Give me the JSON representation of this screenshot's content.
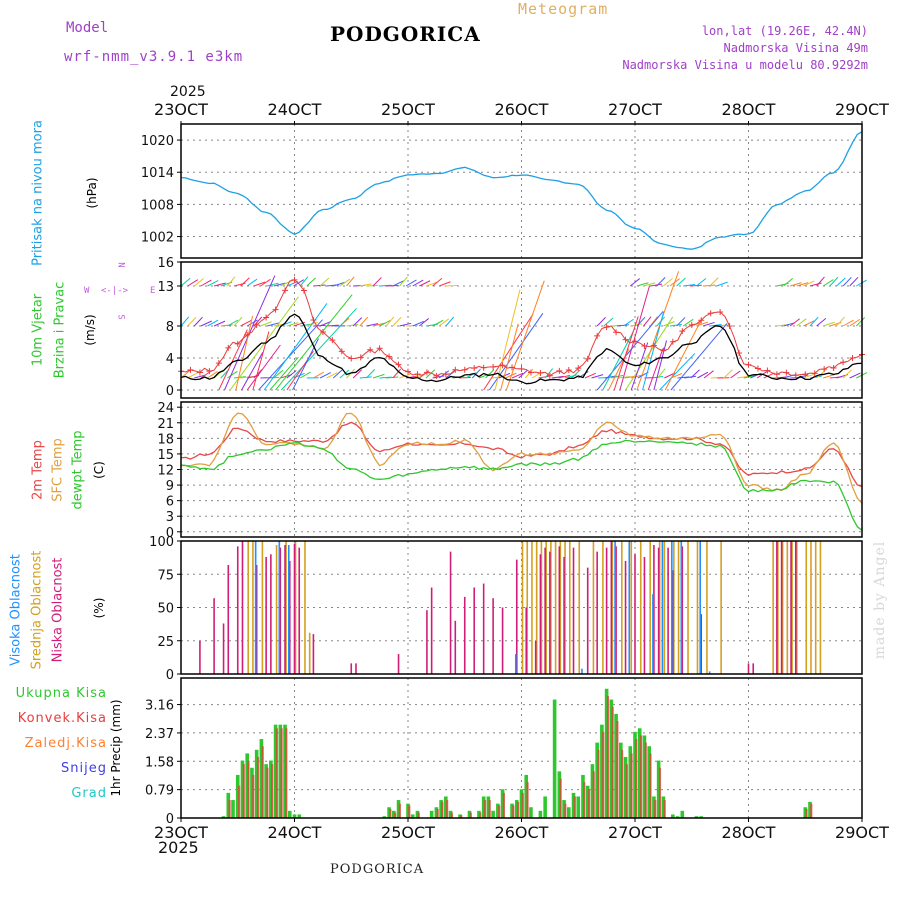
{
  "header": {
    "model_label": "Model",
    "model_name": "wrf-nmm_v3.9.1  e3km",
    "station": "PODGORICA",
    "product": "Meteogram",
    "lonlat": "lon,lat (19.26E, 42.4N)",
    "elevation": "Nadmorska Visina 49m",
    "model_elevation": "Nadmorska Visina u modelu 80.9292m",
    "year_top": "2025",
    "year_bottom": "2025",
    "footer_station": "PODGORICA",
    "credit": "made by Angel"
  },
  "colors": {
    "pressure": "#1ea0e6",
    "wind_legend": "#2ec82e",
    "wind_speed": "#000000",
    "wind_gust": "#e83c3c",
    "t2m": "#e84848",
    "tsfc": "#e0a040",
    "dewpt": "#2ec82e",
    "cloud_high": "#1e90ff",
    "cloud_mid": "#d4a020",
    "cloud_low": "#d01e78",
    "precip_total": "#2ec82e",
    "precip_conv": "#e83c3c",
    "precip_frz": "#ff8030",
    "precip_snow": "#4040e0",
    "precip_grad": "#20c8c8",
    "purple_text": "#a040c8",
    "orange_text": "#e0b060"
  },
  "time_axis": {
    "ticks": [
      "23OCT",
      "24OCT",
      "25OCT",
      "26OCT",
      "27OCT",
      "28OCT",
      "29OCT"
    ]
  },
  "chart_data": [
    {
      "type": "line",
      "name": "pressure",
      "ylabel_main": "Pritisak na nivou mora",
      "ylabel_unit": "(hPa)",
      "yticks": [
        "1020",
        "1014",
        "1008",
        "1002"
      ],
      "ylim": [
        998,
        1023
      ],
      "x_hours": [
        0,
        6,
        12,
        18,
        24,
        30,
        36,
        42,
        48,
        54,
        60,
        66,
        72,
        78,
        84,
        90,
        96,
        102,
        108,
        114,
        120,
        126,
        132,
        138,
        144
      ],
      "values": [
        1013,
        1012,
        1010,
        1006.5,
        1002.5,
        1007,
        1009,
        1012,
        1013.5,
        1013.8,
        1014.8,
        1013,
        1013.5,
        1012.5,
        1011.8,
        1007,
        1003.5,
        1000.5,
        999.6,
        1002,
        1002.5,
        1008,
        1010.5,
        1014,
        1021.5
      ]
    },
    {
      "type": "line",
      "name": "wind",
      "ylabel_main": "10m Vjetar",
      "ylabel_sub": "Brzina i Pravac",
      "ylabel_unit": "(m/s)",
      "compass": {
        "n": "N",
        "s": "S",
        "e": "E",
        "w": "W"
      },
      "yticks": [
        "16",
        "13",
        "8",
        "4",
        "0"
      ],
      "ylim": [
        -1,
        16
      ],
      "x_hours": [
        0,
        6,
        12,
        18,
        24,
        30,
        36,
        42,
        48,
        54,
        60,
        66,
        72,
        78,
        84,
        90,
        96,
        102,
        108,
        114,
        120,
        126,
        132,
        138,
        144
      ],
      "series": [
        {
          "name": "speed",
          "values": [
            1.5,
            1.5,
            3.5,
            6,
            9.5,
            4,
            2,
            4,
            1.5,
            1.2,
            1.8,
            2,
            1,
            1.2,
            1.5,
            5,
            3,
            4,
            6,
            8,
            2,
            1.5,
            1.5,
            2,
            3.5
          ]
        },
        {
          "name": "gust",
          "values": [
            2.2,
            2.5,
            6,
            9,
            14,
            7,
            4,
            5,
            2.2,
            2,
            2.5,
            3,
            2.5,
            2,
            2.5,
            8,
            6,
            5,
            8,
            10,
            3,
            2.2,
            2,
            3,
            4.5
          ]
        }
      ]
    },
    {
      "type": "line",
      "name": "temperature",
      "ylabel_lines": [
        "2m Temp",
        "SFC Temp",
        "dewpt Temp"
      ],
      "ylabel_unit": "(C)",
      "yticks": [
        "24",
        "21",
        "18",
        "15",
        "12",
        "9",
        "6",
        "3",
        "0"
      ],
      "ylim": [
        -1,
        25
      ],
      "x_hours": [
        0,
        6,
        12,
        18,
        24,
        30,
        36,
        42,
        48,
        54,
        60,
        66,
        72,
        78,
        84,
        90,
        96,
        102,
        108,
        114,
        120,
        126,
        132,
        138,
        144
      ],
      "series": [
        {
          "name": "t2m",
          "values": [
            14,
            15,
            20,
            17.5,
            17.5,
            17.5,
            21,
            15.5,
            17,
            16.5,
            17,
            16,
            14.5,
            15,
            16.5,
            19.5,
            18.5,
            18,
            18,
            17,
            11,
            11.5,
            12,
            16,
            8.5
          ]
        },
        {
          "name": "tsfc",
          "values": [
            13,
            13,
            23,
            17,
            17,
            16,
            23,
            13,
            17,
            17,
            17.5,
            12,
            15,
            15,
            15.5,
            21,
            18.5,
            18,
            18,
            19,
            9,
            8,
            11,
            17,
            5.5
          ]
        },
        {
          "name": "dewpt",
          "values": [
            13,
            12,
            15,
            16,
            17,
            16,
            12,
            10,
            11,
            12,
            12.5,
            12,
            13,
            13,
            14,
            17,
            17.5,
            17.5,
            17,
            16.5,
            8,
            8,
            10,
            9.5,
            0
          ]
        }
      ]
    },
    {
      "type": "bar",
      "name": "clouds",
      "ylabel_lines": [
        "Visoka Oblacnost",
        "Srednja Oblacnost",
        "Niska Oblacnost"
      ],
      "ylabel_unit": "(%)",
      "yticks": [
        "100",
        "75",
        "50",
        "25",
        "0"
      ],
      "ylim": [
        0,
        100
      ],
      "series": [
        {
          "name": "low",
          "x_hours": [
            4,
            7,
            9,
            10,
            12,
            13,
            16,
            18,
            19,
            21,
            22,
            23,
            24,
            25,
            28,
            36,
            37,
            46,
            52,
            53,
            57,
            58,
            60,
            62,
            64,
            66,
            68,
            71,
            73,
            75,
            76,
            77,
            78,
            80,
            81,
            83,
            86,
            88,
            90,
            91,
            92,
            94,
            96,
            98,
            100,
            101,
            103,
            104,
            106,
            110,
            120,
            121,
            126,
            127,
            129,
            130
          ],
          "values": [
            25,
            57,
            38,
            82,
            96,
            100,
            82,
            88,
            90,
            95,
            97,
            85,
            98,
            95,
            30,
            8,
            8,
            15,
            48,
            65,
            92,
            40,
            58,
            65,
            68,
            57,
            50,
            86,
            50,
            25,
            90,
            95,
            92,
            96,
            88,
            95,
            80,
            92,
            95,
            100,
            96,
            85,
            90,
            88,
            97,
            95,
            95,
            78,
            96,
            45,
            8,
            8,
            100,
            100,
            100,
            100
          ]
        },
        {
          "name": "mid",
          "x_hours": [
            14,
            15,
            17,
            20,
            22,
            24,
            26,
            27,
            72,
            73,
            74,
            75,
            76,
            77,
            78,
            79,
            80,
            81,
            82,
            84,
            87,
            89,
            91,
            93,
            95,
            97,
            99,
            101,
            102,
            104,
            105,
            107,
            109,
            111,
            114,
            125,
            126,
            127,
            128,
            129,
            130,
            132,
            133,
            134,
            135
          ],
          "values": [
            100,
            100,
            100,
            97,
            100,
            100,
            100,
            31,
            100,
            100,
            100,
            100,
            100,
            100,
            100,
            100,
            100,
            100,
            100,
            100,
            100,
            100,
            100,
            100,
            100,
            100,
            100,
            100,
            100,
            100,
            100,
            100,
            100,
            100,
            100,
            100,
            100,
            100,
            100,
            100,
            100,
            100,
            100,
            100,
            100
          ]
        },
        {
          "name": "high",
          "x_hours": [
            16,
            21,
            23,
            71,
            85,
            92,
            95,
            100,
            102,
            104,
            106,
            110,
            112
          ],
          "values": [
            100,
            100,
            97,
            15,
            4,
            100,
            100,
            60,
            100,
            100,
            100,
            100,
            2
          ]
        }
      ]
    },
    {
      "type": "bar",
      "name": "precipitation",
      "legend": [
        "Ukupna  Kisa",
        "Konvek.Kisa",
        "Zaledj.Kisa",
        "Snijeg",
        "Grad"
      ],
      "ylabel_main": "1hr Precip (mm)",
      "yticks": [
        "3.16",
        "2.37",
        "1.58",
        "0.79",
        "0"
      ],
      "ylim": [
        0,
        3.9
      ],
      "series": [
        {
          "name": "total",
          "x_hours": [
            9,
            10,
            11,
            12,
            13,
            14,
            15,
            16,
            17,
            18,
            19,
            20,
            21,
            22,
            23,
            24,
            25,
            43,
            44,
            45,
            46,
            48,
            49,
            50,
            53,
            54,
            55,
            56,
            57,
            59,
            61,
            63,
            64,
            65,
            66,
            67,
            68,
            70,
            71,
            72,
            73,
            74,
            76,
            77,
            79,
            80,
            81,
            82,
            83,
            84,
            85,
            86,
            87,
            88,
            89,
            90,
            91,
            92,
            93,
            94,
            95,
            96,
            97,
            98,
            99,
            100,
            101,
            102,
            104,
            105,
            106,
            109,
            110,
            132,
            133
          ],
          "values": [
            0.05,
            0.7,
            0.5,
            1.2,
            1.6,
            1.8,
            1.4,
            1.9,
            2.2,
            1.5,
            1.6,
            2.6,
            2.6,
            2.6,
            0.2,
            0.1,
            0.1,
            0.05,
            0.3,
            0.2,
            0.5,
            0.4,
            0.1,
            0.2,
            0.2,
            0.3,
            0.5,
            0.6,
            0.2,
            0.1,
            0.2,
            0.2,
            0.6,
            0.6,
            0.2,
            0.4,
            0.8,
            0.4,
            0.5,
            0.8,
            1.2,
            0.3,
            0.2,
            0.6,
            3.3,
            1.3,
            0.5,
            0.3,
            0.7,
            0.6,
            1.2,
            0.9,
            1.5,
            2.1,
            2.6,
            3.6,
            3.3,
            2.9,
            2.1,
            1.7,
            2.0,
            2.4,
            2.5,
            2.3,
            2.0,
            0.6,
            1.6,
            0.6,
            0.1,
            0.05,
            0.2,
            0.05,
            0.05,
            0.3,
            0.45
          ]
        },
        {
          "name": "conv",
          "x_hours": [
            10,
            12,
            13,
            14,
            15,
            16,
            17,
            18,
            19,
            20,
            21,
            22,
            44,
            45,
            46,
            48,
            50,
            54,
            55,
            56,
            57,
            59,
            61,
            63,
            64,
            65,
            67,
            68,
            70,
            71,
            72,
            73,
            80,
            81,
            83,
            85,
            86,
            87,
            88,
            89,
            90,
            91,
            92,
            93,
            94,
            95,
            96,
            97,
            98,
            99,
            100,
            101,
            102,
            132,
            133
          ],
          "values": [
            0.5,
            0.9,
            1.5,
            1.6,
            1.2,
            1.7,
            2.0,
            1.4,
            1.5,
            2.5,
            2.5,
            2.5,
            0.25,
            0.15,
            0.4,
            0.35,
            0.15,
            0.25,
            0.45,
            0.5,
            0.15,
            0.08,
            0.15,
            0.15,
            0.5,
            0.5,
            0.35,
            0.7,
            0.35,
            0.45,
            0.7,
            1.0,
            1.1,
            0.4,
            0.6,
            1.0,
            0.8,
            1.3,
            1.9,
            2.4,
            3.4,
            3.1,
            2.7,
            1.9,
            1.5,
            1.8,
            2.2,
            2.3,
            2.1,
            1.8,
            0.5,
            1.4,
            0.5,
            0.25,
            0.4
          ]
        }
      ]
    }
  ]
}
